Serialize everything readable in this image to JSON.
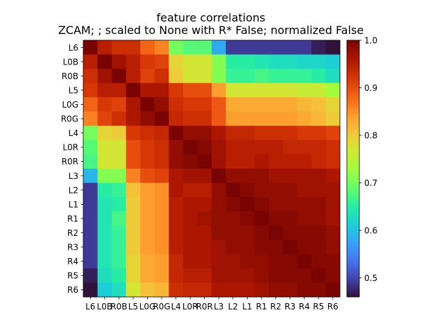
{
  "chart_data": {
    "type": "heatmap",
    "title": "feature correlations",
    "subtitle": "ZCAM; ; scaled to None with R* False; normalized False",
    "labels": [
      "L6",
      "L0B",
      "R0B",
      "L5",
      "L0G",
      "R0G",
      "L4",
      "L0R",
      "R0R",
      "L3",
      "L2",
      "L1",
      "R1",
      "R2",
      "R3",
      "R4",
      "R5",
      "R6"
    ],
    "values": [
      [
        1.0,
        0.95,
        0.93,
        0.93,
        0.88,
        0.86,
        0.7,
        0.68,
        0.68,
        0.58,
        0.49,
        0.49,
        0.49,
        0.49,
        0.49,
        0.49,
        0.47,
        0.44
      ],
      [
        0.95,
        1.0,
        0.97,
        0.95,
        0.92,
        0.91,
        0.79,
        0.77,
        0.77,
        0.71,
        0.65,
        0.65,
        0.64,
        0.63,
        0.63,
        0.62,
        0.62,
        0.61
      ],
      [
        0.93,
        0.97,
        1.0,
        0.95,
        0.91,
        0.93,
        0.8,
        0.77,
        0.77,
        0.71,
        0.66,
        0.66,
        0.67,
        0.66,
        0.66,
        0.66,
        0.65,
        0.63
      ],
      [
        0.92,
        0.95,
        0.95,
        1.0,
        0.96,
        0.96,
        0.92,
        0.9,
        0.9,
        0.84,
        0.77,
        0.77,
        0.77,
        0.77,
        0.77,
        0.76,
        0.76,
        0.73
      ],
      [
        0.88,
        0.92,
        0.91,
        0.96,
        1.0,
        0.98,
        0.93,
        0.92,
        0.92,
        0.89,
        0.83,
        0.83,
        0.83,
        0.83,
        0.83,
        0.82,
        0.81,
        0.79
      ],
      [
        0.86,
        0.91,
        0.93,
        0.96,
        0.98,
        1.0,
        0.94,
        0.93,
        0.93,
        0.89,
        0.84,
        0.84,
        0.84,
        0.84,
        0.84,
        0.83,
        0.82,
        0.8
      ],
      [
        0.7,
        0.79,
        0.8,
        0.92,
        0.93,
        0.94,
        1.0,
        0.98,
        0.98,
        0.96,
        0.94,
        0.94,
        0.93,
        0.93,
        0.93,
        0.92,
        0.92,
        0.91
      ],
      [
        0.68,
        0.77,
        0.77,
        0.9,
        0.92,
        0.93,
        0.98,
        1.0,
        0.99,
        0.97,
        0.95,
        0.95,
        0.95,
        0.95,
        0.94,
        0.94,
        0.94,
        0.93
      ],
      [
        0.67,
        0.77,
        0.77,
        0.9,
        0.92,
        0.93,
        0.98,
        0.99,
        1.0,
        0.97,
        0.95,
        0.95,
        0.96,
        0.95,
        0.95,
        0.95,
        0.94,
        0.93
      ],
      [
        0.59,
        0.71,
        0.71,
        0.86,
        0.9,
        0.91,
        0.96,
        0.97,
        0.97,
        1.0,
        0.98,
        0.98,
        0.98,
        0.97,
        0.97,
        0.97,
        0.97,
        0.96
      ],
      [
        0.49,
        0.65,
        0.66,
        0.81,
        0.84,
        0.85,
        0.96,
        0.95,
        0.95,
        0.98,
        1.0,
        0.99,
        0.98,
        0.98,
        0.98,
        0.97,
        0.97,
        0.97
      ],
      [
        0.49,
        0.64,
        0.65,
        0.8,
        0.84,
        0.85,
        0.95,
        0.96,
        0.96,
        0.98,
        0.99,
        1.0,
        0.99,
        0.98,
        0.98,
        0.98,
        0.98,
        0.97
      ],
      [
        0.49,
        0.64,
        0.67,
        0.8,
        0.84,
        0.85,
        0.95,
        0.96,
        0.97,
        0.98,
        0.98,
        0.99,
        1.0,
        0.99,
        0.99,
        0.98,
        0.98,
        0.97
      ],
      [
        0.49,
        0.64,
        0.66,
        0.8,
        0.84,
        0.85,
        0.95,
        0.96,
        0.96,
        0.98,
        0.98,
        0.98,
        0.99,
        1.0,
        0.99,
        0.99,
        0.99,
        0.98
      ],
      [
        0.49,
        0.64,
        0.66,
        0.8,
        0.84,
        0.85,
        0.95,
        0.96,
        0.96,
        0.97,
        0.98,
        0.98,
        0.99,
        0.99,
        1.0,
        0.99,
        0.99,
        0.98
      ],
      [
        0.49,
        0.64,
        0.66,
        0.79,
        0.83,
        0.84,
        0.94,
        0.96,
        0.96,
        0.97,
        0.97,
        0.98,
        0.98,
        0.99,
        0.99,
        1.0,
        0.99,
        0.99
      ],
      [
        0.47,
        0.63,
        0.65,
        0.79,
        0.83,
        0.84,
        0.94,
        0.95,
        0.95,
        0.97,
        0.97,
        0.97,
        0.98,
        0.99,
        0.99,
        0.99,
        1.0,
        0.99
      ],
      [
        0.44,
        0.61,
        0.63,
        0.77,
        0.81,
        0.82,
        0.93,
        0.94,
        0.94,
        0.96,
        0.96,
        0.96,
        0.97,
        0.98,
        0.98,
        0.99,
        0.99,
        1.0
      ]
    ],
    "colormap": "turbo",
    "vmin": 0.46,
    "vmax": 1.0,
    "colorbar_ticks": [
      0.5,
      0.6,
      0.7,
      0.8,
      0.9,
      1.0
    ],
    "colorbar_tick_labels": [
      "0.5",
      "0.6",
      "0.7",
      "0.8",
      "0.9",
      "1.0"
    ]
  }
}
